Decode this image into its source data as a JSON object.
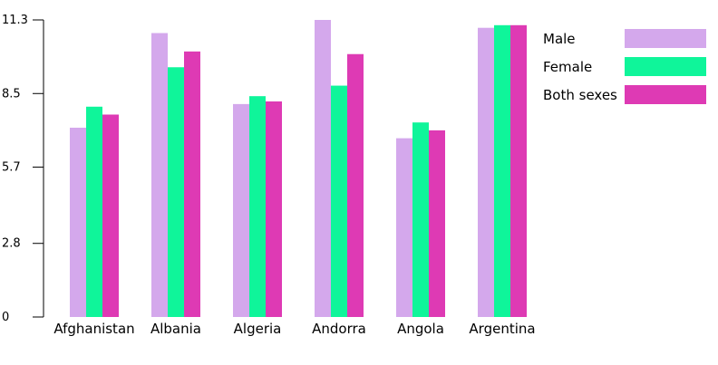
{
  "chart_data": {
    "type": "bar",
    "title": "",
    "xlabel": "",
    "ylabel": "",
    "categories": [
      "Afghanistan",
      "Albania",
      "Algeria",
      "Andorra",
      "Angola",
      "Argentina"
    ],
    "series": [
      {
        "name": "Male",
        "color": "#d4a8ec",
        "values": [
          7.2,
          10.8,
          8.1,
          11.3,
          6.8,
          11.0
        ]
      },
      {
        "name": "Female",
        "color": "#0ff59a",
        "values": [
          8.0,
          9.5,
          8.4,
          8.8,
          7.4,
          11.1
        ]
      },
      {
        "name": "Both sexes",
        "color": "#de3ab4",
        "values": [
          7.7,
          10.1,
          8.2,
          10.0,
          7.1,
          11.1
        ]
      }
    ],
    "yticks": [
      "0",
      "2.8",
      "5.7",
      "8.5",
      "11.3"
    ],
    "ylim": [
      0,
      11.3
    ],
    "grid": false,
    "legend_position": "top-right"
  }
}
